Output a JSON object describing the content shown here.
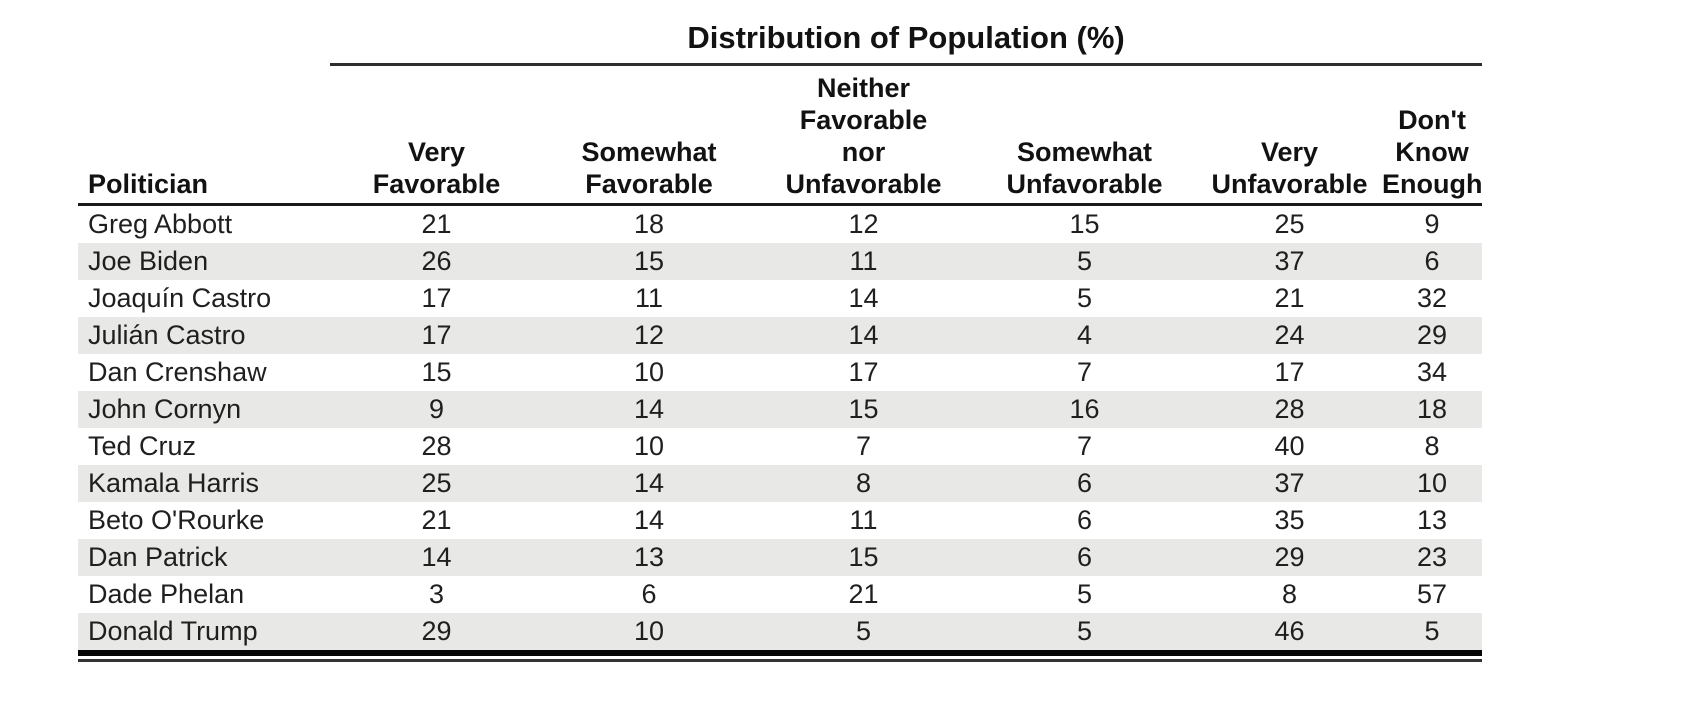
{
  "table": {
    "spanner_title": "Distribution of Population (%)",
    "columns": [
      "Politician",
      "Very\nFavorable",
      "Somewhat\nFavorable",
      "Neither\nFavorable\nnor\nUnfavorable",
      "Somewhat\nUnfavorable",
      "Very\nUnfavorable",
      "Don't\nKnow\nEnough"
    ],
    "rows": [
      {
        "politician": "Greg Abbott",
        "values": [
          "21",
          "18",
          "12",
          "15",
          "25",
          "9"
        ]
      },
      {
        "politician": "Joe Biden",
        "values": [
          "26",
          "15",
          "11",
          "5",
          "37",
          "6"
        ]
      },
      {
        "politician": "Joaquín Castro",
        "values": [
          "17",
          "11",
          "14",
          "5",
          "21",
          "32"
        ]
      },
      {
        "politician": "Julián Castro",
        "values": [
          "17",
          "12",
          "14",
          "4",
          "24",
          "29"
        ]
      },
      {
        "politician": "Dan Crenshaw",
        "values": [
          "15",
          "10",
          "17",
          "7",
          "17",
          "34"
        ]
      },
      {
        "politician": "John Cornyn",
        "values": [
          "9",
          "14",
          "15",
          "16",
          "28",
          "18"
        ]
      },
      {
        "politician": "Ted Cruz",
        "values": [
          "28",
          "10",
          "7",
          "7",
          "40",
          "8"
        ]
      },
      {
        "politician": "Kamala Harris",
        "values": [
          "25",
          "14",
          "8",
          "6",
          "37",
          "10"
        ]
      },
      {
        "politician": "Beto O'Rourke",
        "values": [
          "21",
          "14",
          "11",
          "6",
          "35",
          "13"
        ]
      },
      {
        "politician": "Dan Patrick",
        "values": [
          "14",
          "13",
          "15",
          "6",
          "29",
          "23"
        ]
      },
      {
        "politician": "Dade Phelan",
        "values": [
          "3",
          "6",
          "21",
          "5",
          "8",
          "57"
        ]
      },
      {
        "politician": "Donald Trump",
        "values": [
          "29",
          "10",
          "5",
          "5",
          "46",
          "5"
        ]
      }
    ],
    "colors": {
      "row_stripe": "#e8e8e6",
      "rule": "#1a1a1a",
      "text": "#1f1f1f"
    }
  },
  "chart_data": {
    "type": "table",
    "title": "Distribution of Population (%)",
    "categories": [
      "Very Favorable",
      "Somewhat Favorable",
      "Neither Favorable nor Unfavorable",
      "Somewhat Unfavorable",
      "Very Unfavorable",
      "Don't Know Enough"
    ],
    "series": [
      {
        "name": "Greg Abbott",
        "values": [
          21,
          18,
          12,
          15,
          25,
          9
        ]
      },
      {
        "name": "Joe Biden",
        "values": [
          26,
          15,
          11,
          5,
          37,
          6
        ]
      },
      {
        "name": "Joaquín Castro",
        "values": [
          17,
          11,
          14,
          5,
          21,
          32
        ]
      },
      {
        "name": "Julián Castro",
        "values": [
          17,
          12,
          14,
          4,
          24,
          29
        ]
      },
      {
        "name": "Dan Crenshaw",
        "values": [
          15,
          10,
          17,
          7,
          17,
          34
        ]
      },
      {
        "name": "John Cornyn",
        "values": [
          9,
          14,
          15,
          16,
          28,
          18
        ]
      },
      {
        "name": "Ted Cruz",
        "values": [
          28,
          10,
          7,
          7,
          40,
          8
        ]
      },
      {
        "name": "Kamala Harris",
        "values": [
          25,
          14,
          8,
          6,
          37,
          10
        ]
      },
      {
        "name": "Beto O'Rourke",
        "values": [
          21,
          14,
          11,
          6,
          35,
          13
        ]
      },
      {
        "name": "Dan Patrick",
        "values": [
          14,
          13,
          15,
          6,
          29,
          23
        ]
      },
      {
        "name": "Dade Phelan",
        "values": [
          3,
          6,
          21,
          5,
          8,
          57
        ]
      },
      {
        "name": "Donald Trump",
        "values": [
          29,
          10,
          5,
          5,
          46,
          5
        ]
      }
    ]
  }
}
